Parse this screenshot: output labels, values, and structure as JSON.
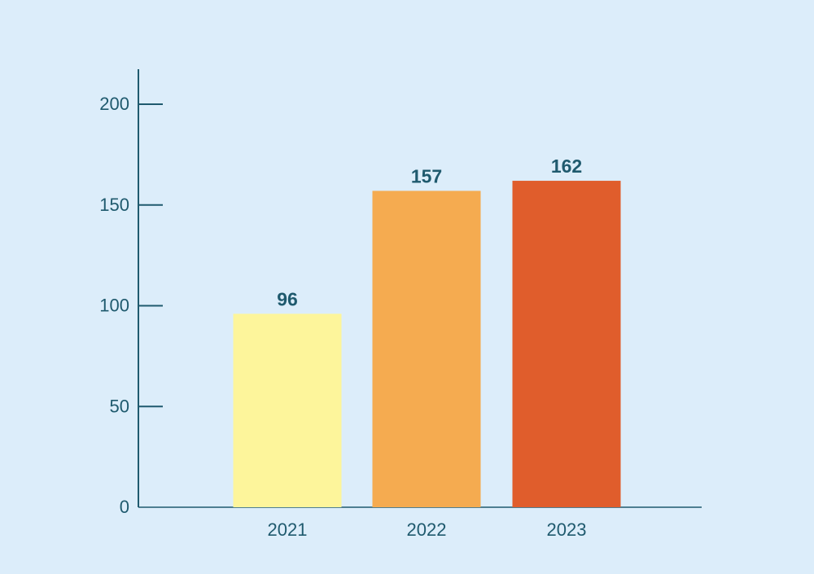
{
  "colors": {
    "background": "#dcedfa",
    "axis": "#1f5a6e",
    "text": "#1f5a6e"
  },
  "chart_data": {
    "type": "bar",
    "title": "",
    "xlabel": "",
    "ylabel": "",
    "categories": [
      "2021",
      "2022",
      "2023"
    ],
    "values": [
      96,
      157,
      162
    ],
    "bar_colors": [
      "#fdf59b",
      "#f5ab50",
      "#e05d2c"
    ],
    "ylim": [
      0,
      200
    ],
    "yticks": [
      0,
      50,
      100,
      150,
      200
    ],
    "grid": false,
    "legend": "none"
  }
}
